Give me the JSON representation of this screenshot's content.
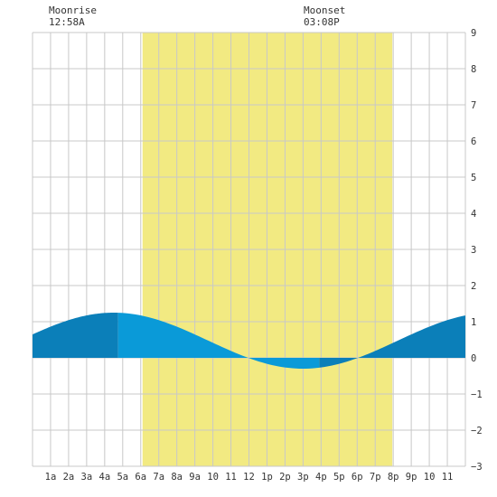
{
  "header": {
    "moonrise_label": "Moonrise",
    "moonrise_time": "12:58A",
    "moonset_label": "Moonset",
    "moonset_time": "03:08P"
  },
  "chart_data": {
    "type": "area",
    "title": "",
    "xlabel": "",
    "ylabel": "",
    "xlim": [
      0,
      24
    ],
    "ylim": [
      -3,
      9
    ],
    "x_tick_labels": [
      {
        "x": 1,
        "label": "1a"
      },
      {
        "x": 2,
        "label": "2a"
      },
      {
        "x": 3,
        "label": "3a"
      },
      {
        "x": 4,
        "label": "4a"
      },
      {
        "x": 5,
        "label": "5a"
      },
      {
        "x": 6,
        "label": "6a"
      },
      {
        "x": 7,
        "label": "7a"
      },
      {
        "x": 8,
        "label": "8a"
      },
      {
        "x": 9,
        "label": "9a"
      },
      {
        "x": 10,
        "label": "10"
      },
      {
        "x": 11,
        "label": "11"
      },
      {
        "x": 12,
        "label": "12"
      },
      {
        "x": 13,
        "label": "1p"
      },
      {
        "x": 14,
        "label": "2p"
      },
      {
        "x": 15,
        "label": "3p"
      },
      {
        "x": 16,
        "label": "4p"
      },
      {
        "x": 17,
        "label": "5p"
      },
      {
        "x": 18,
        "label": "6p"
      },
      {
        "x": 19,
        "label": "7p"
      },
      {
        "x": 20,
        "label": "8p"
      },
      {
        "x": 21,
        "label": "9p"
      },
      {
        "x": 22,
        "label": "10"
      },
      {
        "x": 23,
        "label": "11"
      }
    ],
    "y_ticks": [
      -3,
      -2,
      -1,
      0,
      1,
      2,
      3,
      4,
      5,
      6,
      7,
      8,
      9
    ],
    "grid": true,
    "daylight": {
      "start": 6.1,
      "end": 19.95
    },
    "tide_extremes": [
      {
        "x": 4.5,
        "y": 1.25
      },
      {
        "x": 15.0,
        "y": -0.3
      }
    ],
    "tide_start": {
      "x": 0,
      "y": 0.93
    },
    "tide_end": {
      "x": 24,
      "y": 0.95
    },
    "series_shading": {
      "night_color": "#0b7fb9",
      "day_color": "#0a9ad8",
      "shading_boundaries": [
        4.75,
        15.9
      ]
    },
    "colors": {
      "daylight": "#f2ea82",
      "grid": "#c8c8c8",
      "plot_bg": "#ffffff",
      "axis_text": "#333333"
    }
  }
}
